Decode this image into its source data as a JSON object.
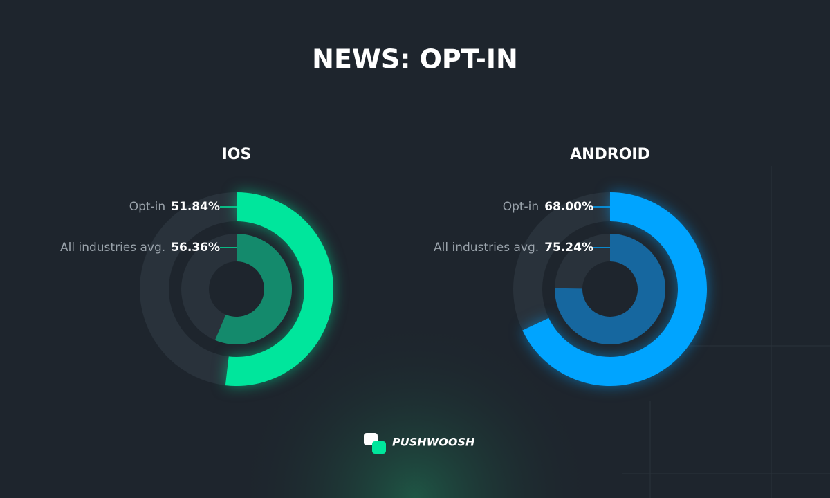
{
  "title": "NEWS: OPT-IN",
  "logo": "PUSHWOOSH",
  "chart_data": [
    {
      "type": "radialbar",
      "title": "IOS",
      "categories": [
        "Opt-in",
        "All industries avg."
      ],
      "values": [
        51.84,
        56.36
      ],
      "value_labels": [
        "51.84%",
        "56.36%"
      ],
      "colors": [
        "#00e69c",
        "#148a6c"
      ],
      "track_color": "#29323b",
      "ylim": [
        0,
        100
      ]
    },
    {
      "type": "radialbar",
      "title": "ANDROID",
      "categories": [
        "Opt-in",
        "All industries avg."
      ],
      "values": [
        68,
        75.24
      ],
      "value_labels": [
        "68.00%",
        "75.24%"
      ],
      "colors": [
        "#00a4ff",
        "#16679f"
      ],
      "track_color": "#29323b",
      "ylim": [
        0,
        100
      ]
    }
  ]
}
